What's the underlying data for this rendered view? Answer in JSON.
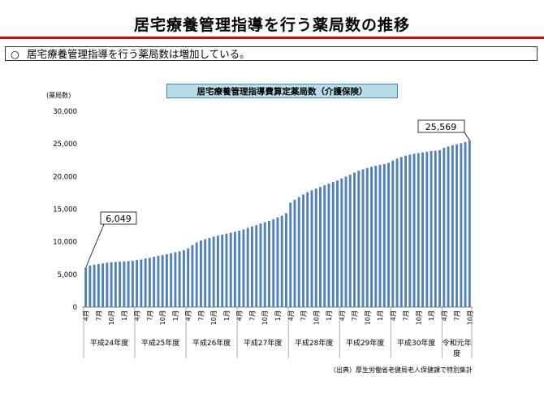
{
  "page": {
    "title": "居宅療養管理指導を行う薬局数の推移",
    "summary_mark": "○",
    "summary": "居宅療養管理指導を行う薬局数は増加している。",
    "source": "（出典）厚生労働省老健局老人保健課で特別集計"
  },
  "colors": {
    "bar": "#4f81bd",
    "title_rule": "#e00000",
    "chart_title_bg": "#b7dde8"
  },
  "chart_data": {
    "type": "bar",
    "title": "居宅療養管理指導費算定薬局数（介護保険）",
    "ylabel": "(薬局数)",
    "ylim": [
      0,
      30000
    ],
    "yticks": [
      "0",
      "5,000",
      "10,000",
      "15,000",
      "20,000",
      "25,000",
      "30,000"
    ],
    "grid": false,
    "month_tick_labels": [
      "4月",
      "7月",
      "10月",
      "1月"
    ],
    "fiscal_years": [
      "平成24年度",
      "平成25年度",
      "平成26年度",
      "平成27年度",
      "平成28年度",
      "平成29年度",
      "平成30年度",
      "令和元年度"
    ],
    "months_last_year": 7,
    "callouts": [
      {
        "index": 0,
        "label": "6,049"
      },
      {
        "index": 90,
        "label": "25,569"
      }
    ],
    "values": [
      6049,
      6350,
      6500,
      6600,
      6700,
      6800,
      6850,
      6900,
      6950,
      7000,
      7050,
      7100,
      7200,
      7300,
      7450,
      7550,
      7700,
      7850,
      7950,
      8100,
      8250,
      8400,
      8550,
      8700,
      9000,
      9500,
      9900,
      10200,
      10400,
      10600,
      10800,
      10950,
      11100,
      11250,
      11400,
      11550,
      11700,
      11900,
      12150,
      12350,
      12550,
      12800,
      13000,
      13200,
      13450,
      13750,
      14000,
      14400,
      16000,
      16450,
      16850,
      17250,
      17600,
      17900,
      18150,
      18400,
      18650,
      18900,
      19150,
      19400,
      19700,
      20000,
      20300,
      20600,
      20900,
      21100,
      21300,
      21500,
      21650,
      21800,
      21900,
      22100,
      22450,
      22750,
      23000,
      23200,
      23350,
      23500,
      23600,
      23700,
      23800,
      23900,
      23950,
      24050,
      24400,
      24600,
      24800,
      24950,
      25100,
      25300,
      25569
    ]
  }
}
